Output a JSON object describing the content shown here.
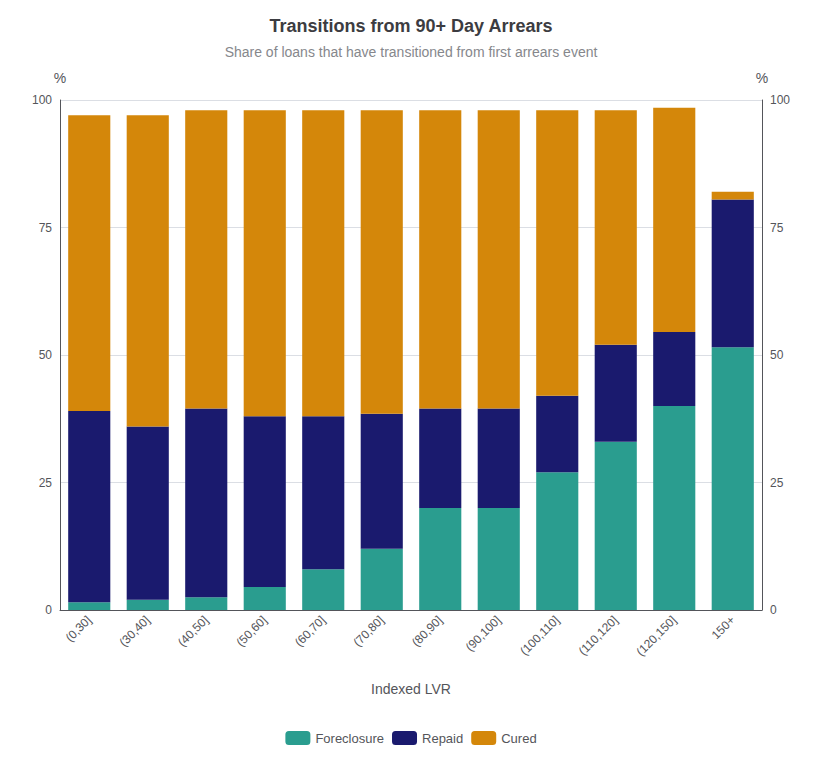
{
  "chart_data": {
    "type": "bar",
    "title": "Transitions from 90+ Day Arrears",
    "subtitle": "Share of loans that have transitioned from first arrears event",
    "xlabel": "Indexed LVR",
    "ylabel": "%",
    "y2label": "%",
    "categories": [
      "(0,30]",
      "(30,40]",
      "(40,50]",
      "(50,60]",
      "(60,70]",
      "(70,80]",
      "(80,90]",
      "(90,100]",
      "(100,110]",
      "(110,120]",
      "(120,150]",
      "150+"
    ],
    "series": [
      {
        "name": "Foreclosure",
        "color": "#2a9d8f",
        "values": [
          1.5,
          2.0,
          2.5,
          4.5,
          8.0,
          12.0,
          20.0,
          20.0,
          27.0,
          33.0,
          40.0,
          51.5
        ]
      },
      {
        "name": "Repaid",
        "color": "#1a1a6e",
        "values": [
          37.5,
          34.0,
          37.0,
          33.5,
          30.0,
          26.5,
          19.5,
          19.5,
          15.0,
          19.0,
          14.5,
          29.0
        ]
      },
      {
        "name": "Cured",
        "color": "#d4870a",
        "values": [
          58.0,
          61.0,
          58.5,
          60.0,
          60.0,
          59.5,
          58.5,
          58.5,
          56.0,
          46.0,
          44.0,
          1.5
        ]
      }
    ],
    "stacked": true,
    "ylim": [
      0,
      100
    ],
    "yticks": [
      0,
      25,
      50,
      75,
      100
    ],
    "y2lim": [
      0,
      100
    ],
    "y2ticks": [
      0,
      25,
      50,
      75,
      100
    ],
    "grid": true,
    "legend": "bottom"
  }
}
